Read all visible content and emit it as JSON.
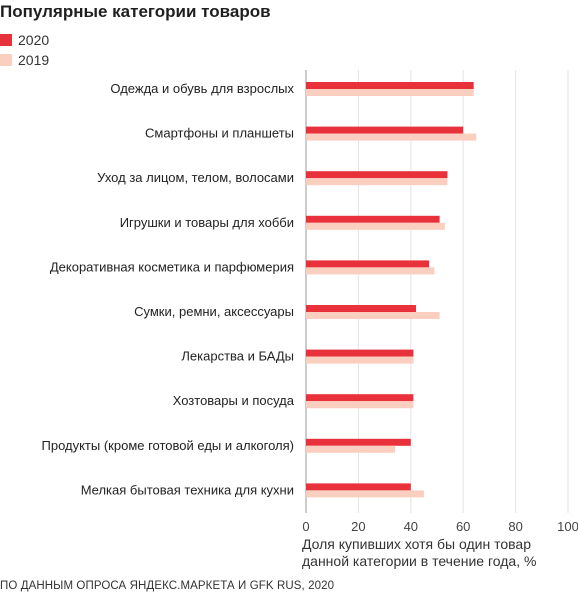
{
  "chart_data": {
    "type": "bar",
    "orientation": "horizontal",
    "title": "Популярные категории товаров",
    "categories": [
      "Одежда и обувь для взрослых",
      "Смартфоны и планшеты",
      "Уход за лицом, телом, волосами",
      "Игрушки и товары для хобби",
      "Декоративная косметика и парфюмерия",
      "Сумки, ремни, аксессуары",
      "Лекарства и БАДы",
      "Хозтовары и посуда",
      "Продукты (кроме готовой еды и алкоголя)",
      "Мелкая бытовая техника для кухни"
    ],
    "series": [
      {
        "name": "2020",
        "color": "#e8313a",
        "values": [
          64,
          60,
          54,
          51,
          47,
          42,
          41,
          41,
          40,
          40
        ]
      },
      {
        "name": "2019",
        "color": "#fbcfc0",
        "values": [
          64,
          65,
          54,
          53,
          49,
          51,
          41,
          41,
          34,
          45
        ]
      }
    ],
    "xlabel": "Доля купивших хотя бы один товар данной категории в течение года, %",
    "xlabel_lines": [
      "Доля купивших хотя бы один товар",
      "данной категории в течение года, %"
    ],
    "xlim": [
      0,
      100
    ],
    "xticks": [
      0,
      20,
      40,
      60,
      80,
      100
    ],
    "grid": true,
    "legend_position": "top-left"
  },
  "source": "ПО ДАННЫМ ОПРОСА ЯНДЕКС.МАРКЕТА И GFK RUS, 2020"
}
